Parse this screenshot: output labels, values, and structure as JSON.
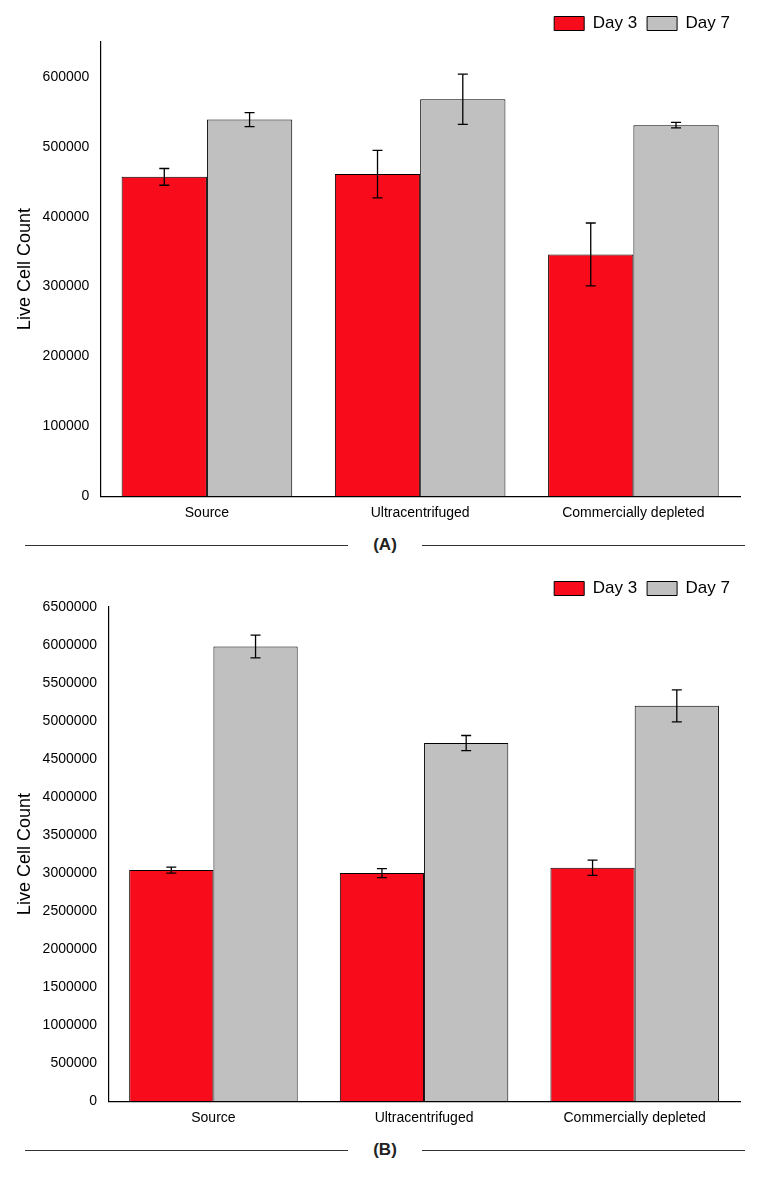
{
  "chart_data": [
    {
      "type": "bar",
      "title": "(A)",
      "y_label": "Live Cell Count",
      "categories": [
        "Source",
        "Ultracentrifuged",
        "Commercially depleted"
      ],
      "series": [
        {
          "name": "Day 3",
          "color": "#f80c1c",
          "values": [
            457000,
            461000,
            346000
          ],
          "errors": [
            12000,
            34000,
            45000
          ]
        },
        {
          "name": "Day 7",
          "color": "#c0c0c0",
          "values": [
            539000,
            568000,
            531000
          ],
          "errors": [
            10000,
            36000,
            4000
          ]
        }
      ],
      "ylim": [
        0,
        650000
      ],
      "yticks": [
        0,
        100000,
        200000,
        300000,
        400000,
        500000,
        600000
      ],
      "legend": "upper right",
      "grid": false
    },
    {
      "type": "bar",
      "title": "(B)",
      "y_label": "Live Cell Count",
      "categories": [
        "Source",
        "Ultracentrifuged",
        "Commercially depleted"
      ],
      "series": [
        {
          "name": "Day 3",
          "color": "#f80c1c",
          "values": [
            3040000,
            3000000,
            3070000
          ],
          "errors": [
            40000,
            60000,
            100000
          ]
        },
        {
          "name": "Day 7",
          "color": "#c0c0c0",
          "values": [
            5980000,
            4710000,
            5200000
          ],
          "errors": [
            150000,
            100000,
            210000
          ]
        }
      ],
      "ylim": [
        0,
        6500000
      ],
      "yticks": [
        0,
        500000,
        1000000,
        1500000,
        2000000,
        2500000,
        3000000,
        3500000,
        4000000,
        4500000,
        5000000,
        5500000,
        6000000,
        6500000
      ],
      "legend": "upper right",
      "grid": false
    }
  ]
}
